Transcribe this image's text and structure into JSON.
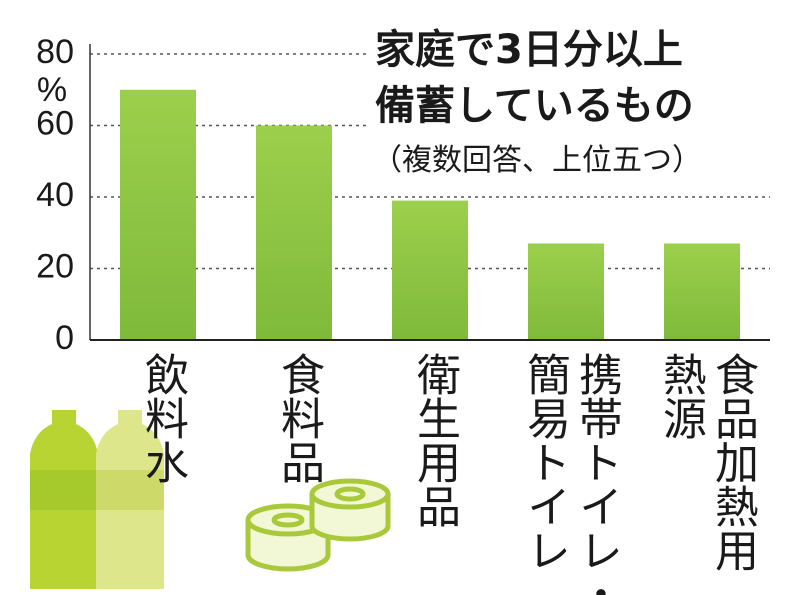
{
  "chart_data": {
    "type": "bar",
    "title": [
      "家庭で3日分以上",
      "備蓄しているもの"
    ],
    "subtitle": "（複数回答、上位五つ）",
    "y_unit": "%",
    "categories": [
      [
        "飲料水"
      ],
      [
        "食料品"
      ],
      [
        "衛生用品"
      ],
      [
        "携帯トイレ・",
        "簡易トイレ"
      ],
      [
        "食品加熱用",
        "熱源"
      ]
    ],
    "values": [
      70,
      60,
      39,
      27,
      27
    ],
    "color": "#8cc63f",
    "ylim": [
      0,
      80
    ],
    "yticks": [
      0,
      20,
      40,
      60,
      80
    ],
    "grid": true
  }
}
